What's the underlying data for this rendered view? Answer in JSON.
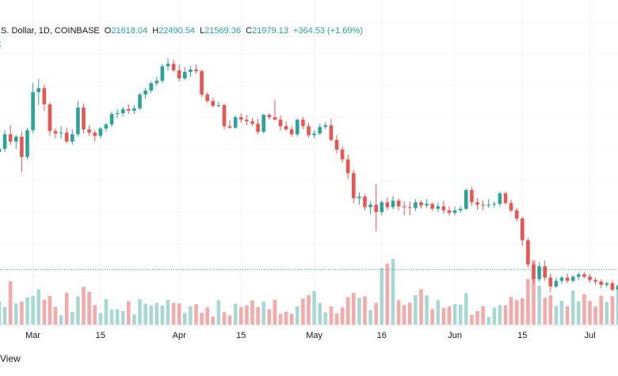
{
  "header": {
    "title": ".S. Dollar, 1D, COINBASE",
    "o_label": "O",
    "o_value": "21618.04",
    "h_label": "H",
    "h_value": "22490.54",
    "l_label": "L",
    "l_value": "21569.36",
    "c_label": "C",
    "c_value": "21979.13",
    "change": "+364.53 (+1.69%)",
    "badge": "x"
  },
  "footer": {
    "text": "View"
  },
  "colors": {
    "up": "#26a69a",
    "down": "#ef5350",
    "up_volume": "#a7d8d3",
    "down_volume": "#f5a9a8",
    "grid": "#f0f3fa"
  },
  "chart_data": {
    "type": "candlestick",
    "x_tick_labels": [
      "Mar",
      "15",
      "Apr",
      "15",
      "May",
      "16",
      "Jun",
      "15",
      "Jul"
    ],
    "last_close_marker": 21979.13,
    "grid": true,
    "ohlc": [
      [
        36500,
        37400,
        35800,
        36900
      ],
      [
        36900,
        39200,
        36500,
        38700
      ],
      [
        38700,
        39800,
        37400,
        37800
      ],
      [
        37800,
        38600,
        36900,
        38400
      ],
      [
        38400,
        39000,
        34000,
        35900
      ],
      [
        35900,
        39500,
        35600,
        39200
      ],
      [
        39200,
        45000,
        38800,
        43900
      ],
      [
        43900,
        45500,
        42300,
        44400
      ],
      [
        44400,
        44800,
        41600,
        42400
      ],
      [
        42400,
        42600,
        38500,
        39100
      ],
      [
        39100,
        39400,
        38200,
        38800
      ],
      [
        38800,
        39700,
        38100,
        38900
      ],
      [
        38900,
        39500,
        37600,
        37800
      ],
      [
        37800,
        39300,
        37400,
        38700
      ],
      [
        38700,
        42800,
        38400,
        42000
      ],
      [
        42000,
        42500,
        38800,
        39300
      ],
      [
        39300,
        39800,
        38500,
        38900
      ],
      [
        38900,
        39200,
        37800,
        38500
      ],
      [
        38500,
        39600,
        38200,
        39400
      ],
      [
        39400,
        40100,
        39000,
        39900
      ],
      [
        39900,
        41500,
        39600,
        41200
      ],
      [
        41200,
        41800,
        40700,
        41300
      ],
      [
        41300,
        42100,
        40900,
        41800
      ],
      [
        41800,
        42400,
        41200,
        41600
      ],
      [
        41600,
        42300,
        41200,
        41900
      ],
      [
        41900,
        43800,
        41700,
        43600
      ],
      [
        43600,
        44400,
        43100,
        44100
      ],
      [
        44100,
        45200,
        43800,
        45000
      ],
      [
        45000,
        45800,
        44700,
        45300
      ],
      [
        45300,
        47400,
        45000,
        47100
      ],
      [
        47100,
        48100,
        46600,
        47400
      ],
      [
        47400,
        47900,
        46400,
        46600
      ],
      [
        46600,
        47300,
        45200,
        45600
      ],
      [
        45600,
        47000,
        45400,
        46400
      ],
      [
        46400,
        47100,
        45800,
        46700
      ],
      [
        46700,
        47300,
        46200,
        46500
      ],
      [
        46500,
        46700,
        43300,
        43600
      ],
      [
        43600,
        43900,
        42600,
        42800
      ],
      [
        42800,
        43200,
        42000,
        42200
      ],
      [
        42200,
        42700,
        42000,
        42300
      ],
      [
        42300,
        42500,
        39300,
        39700
      ],
      [
        39700,
        40400,
        39400,
        39500
      ],
      [
        39500,
        41000,
        39400,
        40800
      ],
      [
        40800,
        41300,
        40100,
        40500
      ],
      [
        40500,
        41100,
        39800,
        40300
      ],
      [
        40300,
        40700,
        39700,
        40000
      ],
      [
        40000,
        40600,
        38700,
        39000
      ],
      [
        39000,
        41200,
        38800,
        41100
      ],
      [
        41100,
        41300,
        40500,
        40800
      ],
      [
        40800,
        42900,
        40400,
        40500
      ],
      [
        40500,
        41000,
        39200,
        39700
      ],
      [
        39700,
        40300,
        39100,
        39300
      ],
      [
        39300,
        39700,
        38400,
        38700
      ],
      [
        38700,
        40600,
        38400,
        40500
      ],
      [
        40500,
        40800,
        39300,
        39700
      ],
      [
        39700,
        40100,
        38300,
        38600
      ],
      [
        38600,
        39200,
        38200,
        38800
      ],
      [
        38800,
        40000,
        38600,
        39600
      ],
      [
        39600,
        40200,
        39300,
        39800
      ],
      [
        39800,
        40600,
        37800,
        38000
      ],
      [
        38000,
        38600,
        36300,
        36800
      ],
      [
        36800,
        37200,
        35200,
        35600
      ],
      [
        35600,
        36200,
        33200,
        33900
      ],
      [
        33900,
        34300,
        30200,
        30800
      ],
      [
        30800,
        31500,
        30000,
        31000
      ],
      [
        31000,
        31300,
        29300,
        29700
      ],
      [
        29700,
        30400,
        28800,
        30000
      ],
      [
        30000,
        32600,
        26700,
        29100
      ],
      [
        29100,
        30500,
        28700,
        30300
      ],
      [
        30300,
        30900,
        29300,
        29700
      ],
      [
        29700,
        31100,
        29400,
        30500
      ],
      [
        30500,
        30800,
        29300,
        29800
      ],
      [
        29800,
        30400,
        28700,
        29700
      ],
      [
        29700,
        30400,
        28700,
        29600
      ],
      [
        29600,
        30700,
        29200,
        30300
      ],
      [
        30300,
        30500,
        29500,
        29900
      ],
      [
        29900,
        30700,
        29600,
        30100
      ],
      [
        30100,
        30300,
        29200,
        29500
      ],
      [
        29500,
        30300,
        29100,
        29800
      ],
      [
        29800,
        30500,
        28900,
        29300
      ],
      [
        29300,
        29800,
        28600,
        29000
      ],
      [
        29000,
        29800,
        28700,
        29300
      ],
      [
        29300,
        29800,
        29000,
        29500
      ],
      [
        29500,
        32000,
        29300,
        31800
      ],
      [
        31800,
        32200,
        29900,
        30300
      ],
      [
        30300,
        30800,
        29400,
        30000
      ],
      [
        30000,
        30500,
        29300,
        29900
      ],
      [
        29900,
        30700,
        29600,
        30000
      ],
      [
        30000,
        30400,
        29600,
        30100
      ],
      [
        30100,
        31600,
        29800,
        31400
      ],
      [
        31400,
        31600,
        30000,
        30200
      ],
      [
        30200,
        30600,
        29100,
        29300
      ],
      [
        29300,
        29600,
        27900,
        28300
      ],
      [
        28300,
        28500,
        24900,
        25600
      ],
      [
        25600,
        25900,
        22200,
        22600
      ],
      [
        22600,
        22900,
        20200,
        20800
      ],
      [
        20800,
        22900,
        20500,
        22400
      ],
      [
        22400,
        23100,
        20600,
        21000
      ],
      [
        21000,
        21500,
        19200,
        19900
      ],
      [
        19900,
        21000,
        19700,
        20600
      ],
      [
        20600,
        21200,
        20200,
        21000
      ],
      [
        21000,
        21500,
        20300,
        20600
      ],
      [
        20600,
        21300,
        20400,
        21100
      ],
      [
        21100,
        21600,
        20700,
        21400
      ],
      [
        21400,
        21700,
        20900,
        21100
      ],
      [
        21100,
        21500,
        20400,
        20700
      ],
      [
        20700,
        21000,
        20100,
        20500
      ],
      [
        20500,
        20800,
        19700,
        20100
      ],
      [
        20100,
        20500,
        19800,
        20300
      ],
      [
        20300,
        20600,
        19300,
        19500
      ],
      [
        19500,
        20200,
        19300,
        20000
      ],
      [
        20000,
        20900,
        19700,
        20700
      ],
      [
        20700,
        21100,
        20400,
        20600
      ],
      [
        20600,
        21900,
        20400,
        21600
      ],
      [
        21618.04,
        22490.54,
        21569.36,
        21979.13
      ]
    ],
    "volume": [
      95,
      72,
      178,
      87,
      94,
      112,
      118,
      145,
      102,
      117,
      72,
      38,
      130,
      52,
      115,
      155,
      135,
      80,
      48,
      104,
      61,
      63,
      55,
      96,
      42,
      104,
      86,
      79,
      89,
      79,
      101,
      89,
      87,
      48,
      75,
      84,
      48,
      70,
      33,
      100,
      51,
      37,
      86,
      72,
      78,
      99,
      72,
      94,
      63,
      102,
      44,
      53,
      44,
      75,
      107,
      121,
      138,
      89,
      50,
      75,
      47,
      70,
      113,
      130,
      110,
      116,
      60,
      89,
      233,
      250,
      270,
      100,
      80,
      90,
      120,
      145,
      120,
      64,
      100,
      68,
      75,
      85,
      81,
      129,
      40,
      55,
      75,
      31,
      69,
      80,
      78,
      113,
      100,
      108,
      187,
      265,
      160,
      110,
      120,
      76,
      97,
      75,
      140,
      96,
      125,
      97,
      74,
      118,
      93,
      117,
      140,
      124,
      66,
      104,
      165
    ]
  }
}
